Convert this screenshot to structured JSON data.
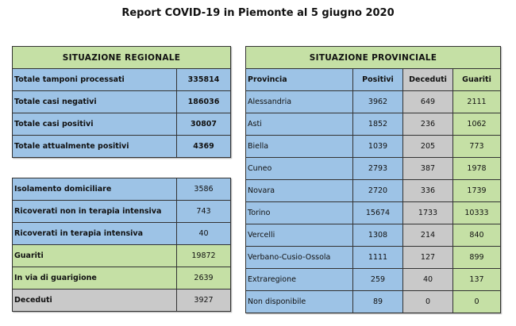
{
  "title": "Report COVID-19 in Piemonte al 5 giugno 2020",
  "colors": {
    "blue": "#9dc3e6",
    "green": "#c5e0a5",
    "gray": "#c9c9c9"
  },
  "regional": {
    "header": "SITUAZIONE REGIONALE",
    "totals": [
      {
        "label": "Totale tamponi processati",
        "value": "335814"
      },
      {
        "label": "Totale casi negativi",
        "value": "186036"
      },
      {
        "label": "Totale casi positivi",
        "value": "30807"
      },
      {
        "label": "Totale attualmente positivi",
        "value": "4369"
      }
    ],
    "details": [
      {
        "label": "Isolamento domiciliare",
        "value": "3586"
      },
      {
        "label": "Ricoverati non in terapia intensiva",
        "value": "743"
      },
      {
        "label": "Ricoverati in terapia intensiva",
        "value": "40"
      },
      {
        "label": "Guariti",
        "value": "19872"
      },
      {
        "label": "In via di guarigione",
        "value": "2639"
      },
      {
        "label": "Deceduti",
        "value": "3927"
      }
    ]
  },
  "provincial": {
    "header": "SITUAZIONE PROVINCIALE",
    "columns": [
      "Provincia",
      "Positivi",
      "Deceduti",
      "Guariti"
    ],
    "rows": [
      [
        "Alessandria",
        "3962",
        "649",
        "2111"
      ],
      [
        "Asti",
        "1852",
        "236",
        "1062"
      ],
      [
        "Biella",
        "1039",
        "205",
        "773"
      ],
      [
        "Cuneo",
        "2793",
        "387",
        "1978"
      ],
      [
        "Novara",
        "2720",
        "336",
        "1739"
      ],
      [
        "Torino",
        "15674",
        "1733",
        "10333"
      ],
      [
        "Vercelli",
        "1308",
        "214",
        "840"
      ],
      [
        "Verbano-Cusio-Ossola",
        "1111",
        "127",
        "899"
      ],
      [
        "Extraregione",
        "259",
        "40",
        "137"
      ],
      [
        "Non disponibile",
        "89",
        "0",
        "0"
      ]
    ]
  }
}
